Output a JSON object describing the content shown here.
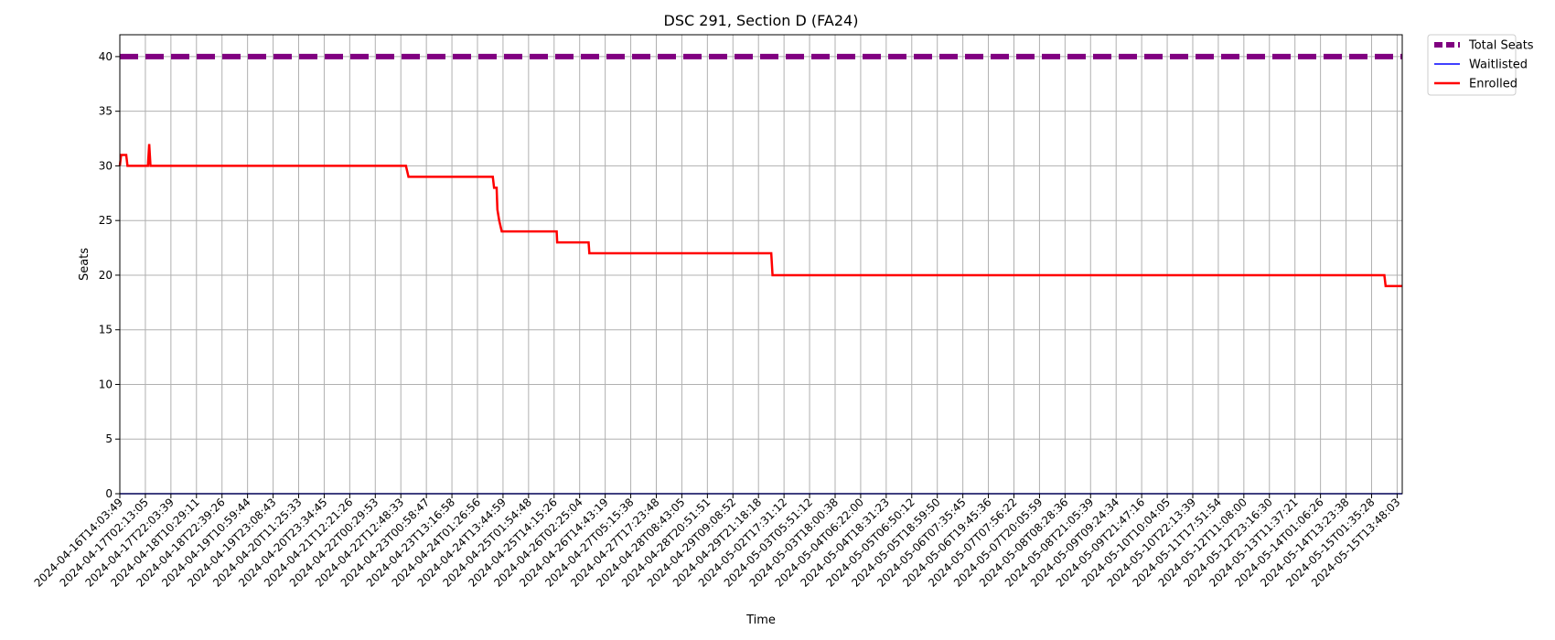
{
  "chart_data": {
    "type": "line",
    "title": "DSC 291, Section D (FA24)",
    "xlabel": "Time",
    "ylabel": "Seats",
    "ylim": [
      0,
      42
    ],
    "yticks": [
      0,
      5,
      10,
      15,
      20,
      25,
      30,
      35,
      40
    ],
    "grid": true,
    "legend_position": "outside-top-right",
    "x_ticks": [
      "2024-04-16T14:03:49",
      "2024-04-17T02:13:05",
      "2024-04-17T22:03:39",
      "2024-04-18T10:29:11",
      "2024-04-18T22:39:26",
      "2024-04-19T10:59:44",
      "2024-04-19T23:08:43",
      "2024-04-20T11:25:33",
      "2024-04-20T23:34:45",
      "2024-04-21T12:21:26",
      "2024-04-22T00:29:53",
      "2024-04-22T12:48:33",
      "2024-04-23T00:58:47",
      "2024-04-23T13:16:58",
      "2024-04-24T01:26:56",
      "2024-04-24T13:44:59",
      "2024-04-25T01:54:48",
      "2024-04-25T14:15:26",
      "2024-04-26T02:25:04",
      "2024-04-26T14:43:19",
      "2024-04-27T05:15:38",
      "2024-04-27T17:23:48",
      "2024-04-28T08:43:05",
      "2024-04-28T20:51:51",
      "2024-04-29T09:08:52",
      "2024-04-29T21:18:18",
      "2024-05-02T17:31:12",
      "2024-05-03T05:51:12",
      "2024-05-03T18:00:38",
      "2024-05-04T06:22:00",
      "2024-05-04T18:31:23",
      "2024-05-05T06:50:12",
      "2024-05-05T18:59:50",
      "2024-05-06T07:35:45",
      "2024-05-06T19:45:36",
      "2024-05-07T07:56:22",
      "2024-05-07T20:05:59",
      "2024-05-08T08:28:36",
      "2024-05-08T21:05:39",
      "2024-05-09T09:24:34",
      "2024-05-09T21:47:16",
      "2024-05-10T10:04:05",
      "2024-05-10T22:13:39",
      "2024-05-11T17:51:54",
      "2024-05-12T11:08:00",
      "2024-05-12T23:16:30",
      "2024-05-13T11:37:21",
      "2024-05-14T01:06:26",
      "2024-05-14T13:23:38",
      "2024-05-15T01:35:28",
      "2024-05-15T13:48:03"
    ],
    "series": [
      {
        "name": "Total Seats",
        "color": "#800080",
        "style": "dashed",
        "points": [
          [
            0,
            40
          ],
          [
            50.2,
            40
          ]
        ]
      },
      {
        "name": "Waitlisted",
        "color": "#0000ff",
        "style": "solid",
        "points": [
          [
            0,
            0
          ],
          [
            50.2,
            0
          ]
        ]
      },
      {
        "name": "Enrolled",
        "color": "#ff0000",
        "style": "solid",
        "points": [
          [
            0,
            30
          ],
          [
            0.05,
            31
          ],
          [
            0.25,
            31
          ],
          [
            0.3,
            30
          ],
          [
            1.1,
            30
          ],
          [
            1.15,
            32
          ],
          [
            1.2,
            30
          ],
          [
            11.2,
            30
          ],
          [
            11.3,
            29
          ],
          [
            14.6,
            29
          ],
          [
            14.65,
            28
          ],
          [
            14.75,
            28
          ],
          [
            14.78,
            26
          ],
          [
            14.85,
            25
          ],
          [
            14.95,
            24
          ],
          [
            17.1,
            24
          ],
          [
            17.12,
            23
          ],
          [
            18.35,
            23
          ],
          [
            18.38,
            22
          ],
          [
            25.5,
            22
          ],
          [
            25.55,
            20
          ],
          [
            49.5,
            20
          ],
          [
            49.55,
            19
          ],
          [
            50.2,
            19
          ]
        ]
      }
    ]
  }
}
